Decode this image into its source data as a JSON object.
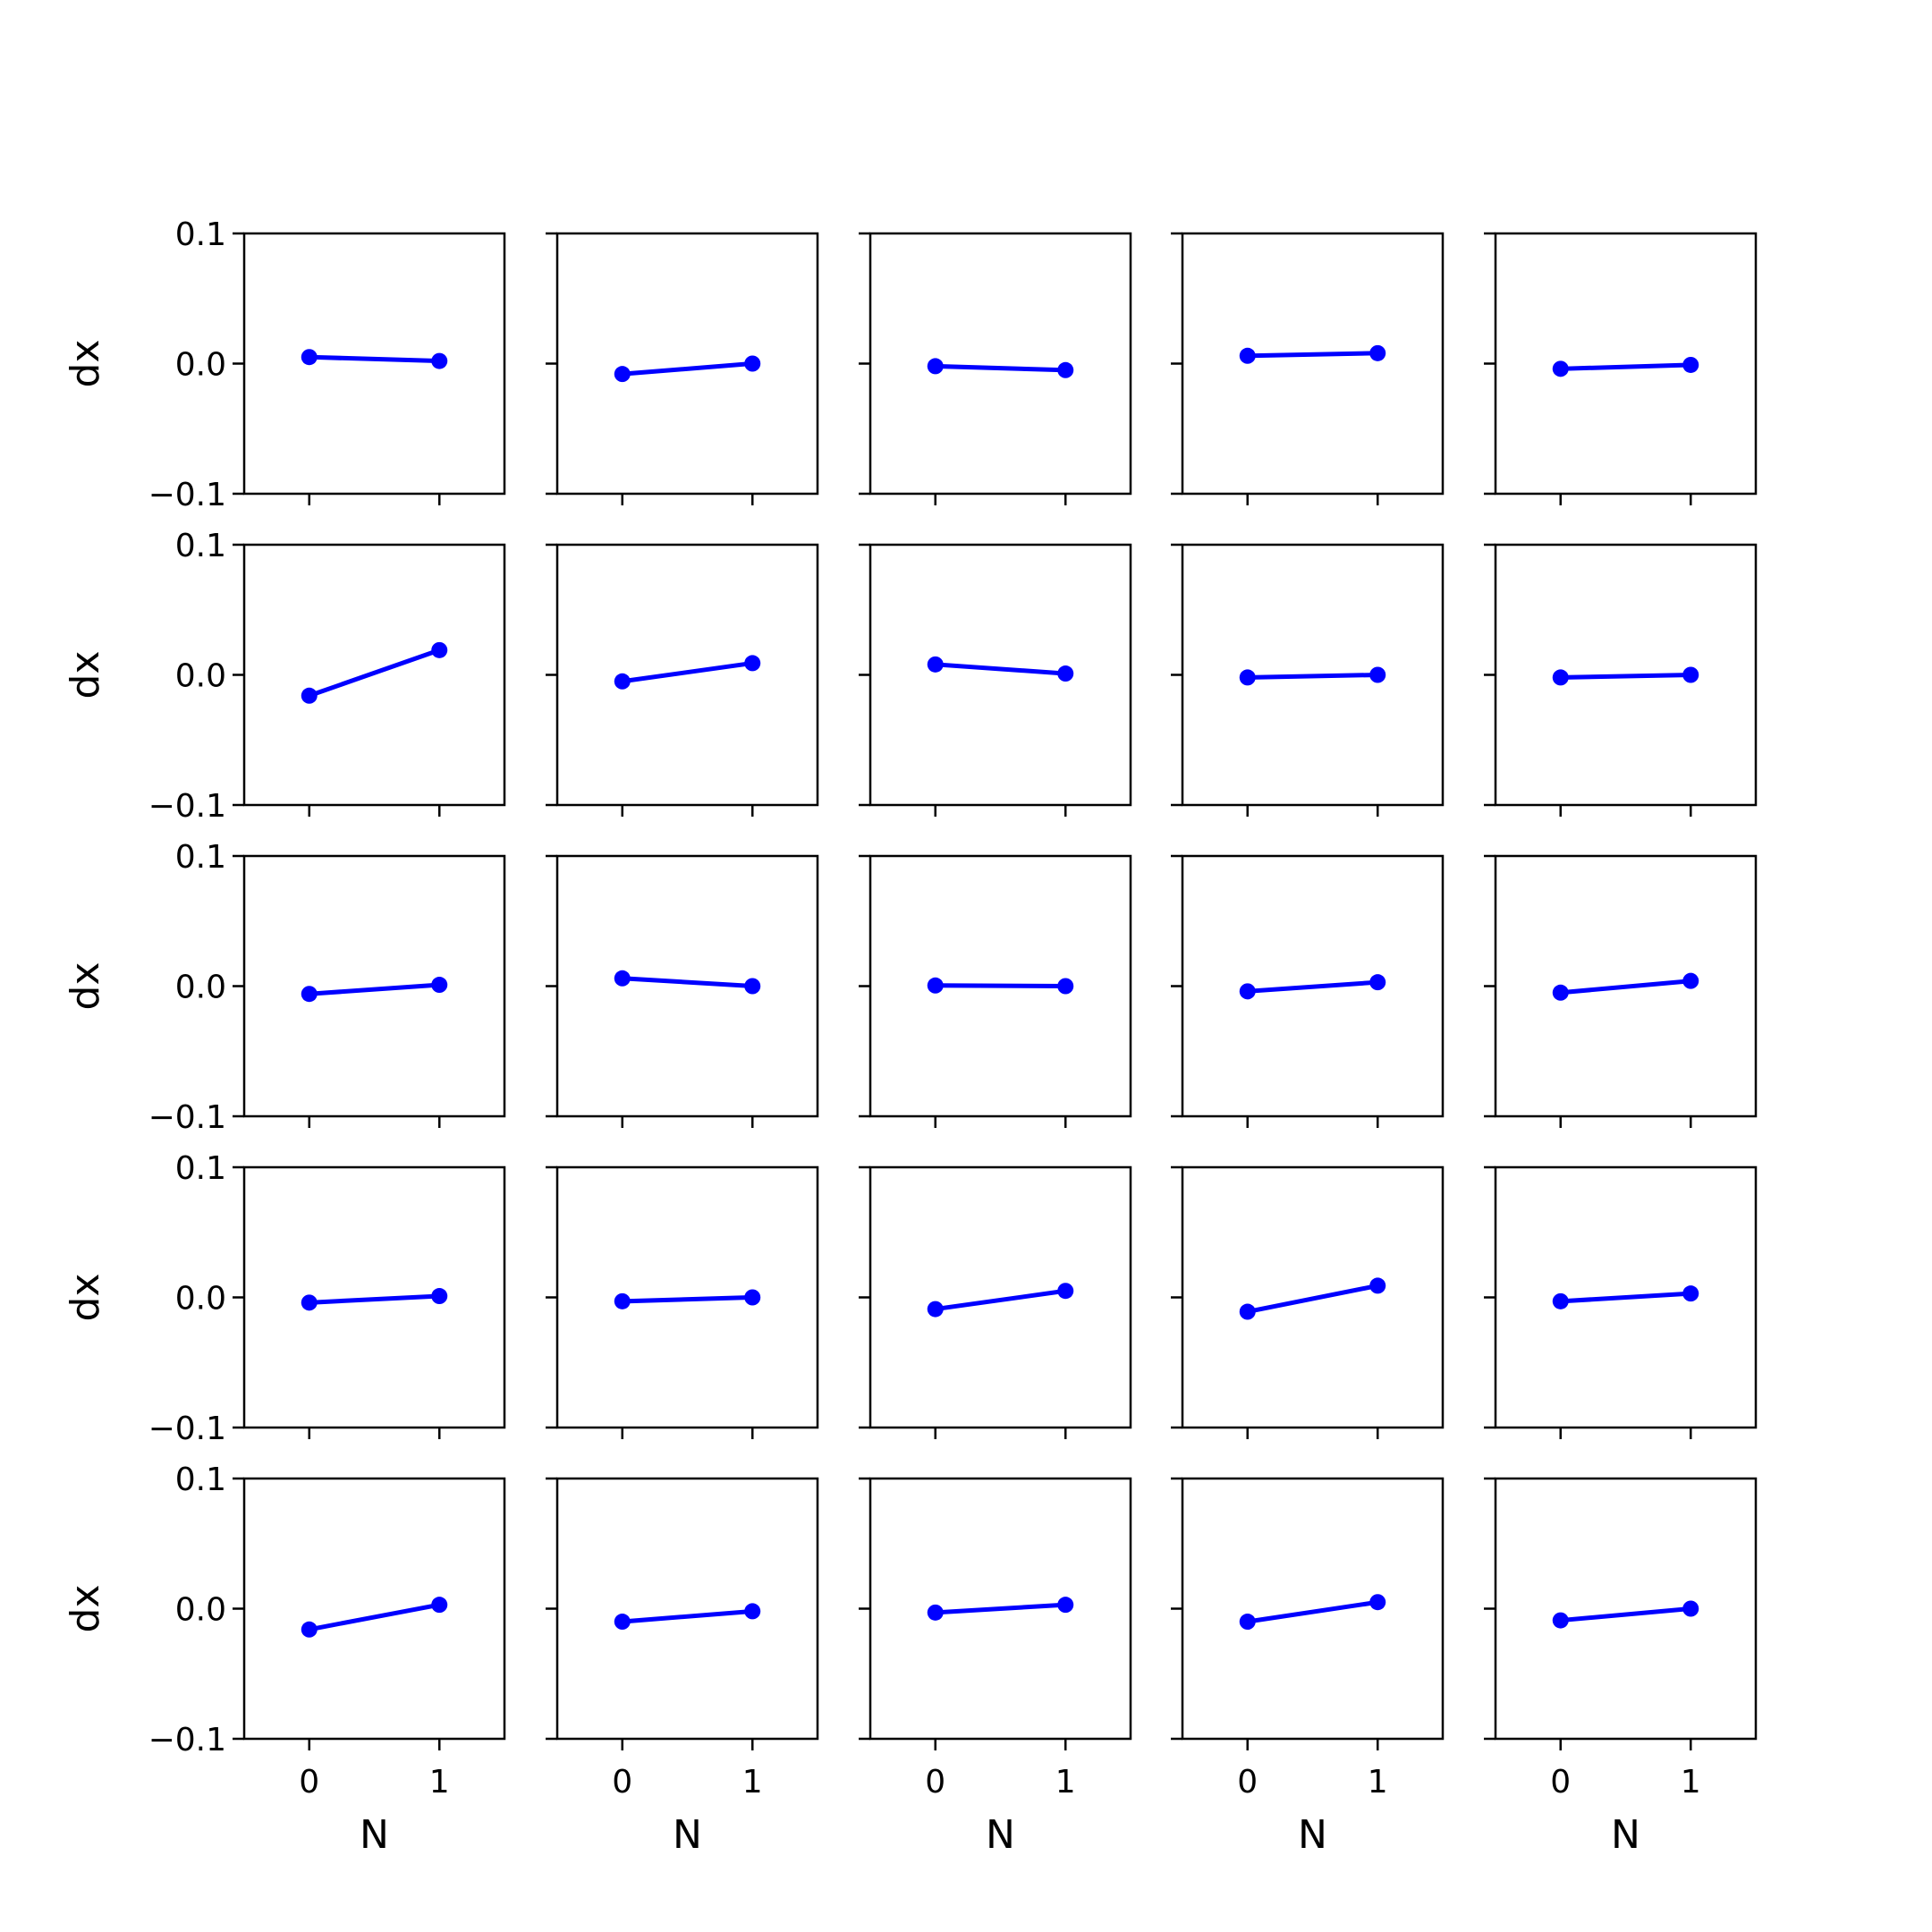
{
  "figure": {
    "layout": "5x5 grid of line charts, shared x and y axes",
    "xlabel": "N",
    "ylabel": "dx",
    "series_color": "#0000ff"
  },
  "chart_data": [
    {
      "type": "line",
      "x": [
        0,
        1
      ],
      "series": [
        {
          "values": [
            0.005,
            0.002
          ]
        }
      ],
      "xlim": [
        -0.5,
        1.5
      ],
      "ylim": [
        -0.1,
        0.1
      ],
      "xticks": [
        "0",
        "1"
      ],
      "yticks": [
        "−0.1",
        "0.0",
        "0.1"
      ],
      "xlabel": "",
      "ylabel": "dx",
      "grid": false
    },
    {
      "type": "line",
      "x": [
        0,
        1
      ],
      "series": [
        {
          "values": [
            -0.008,
            0.0
          ]
        }
      ],
      "xlim": [
        -0.5,
        1.5
      ],
      "ylim": [
        -0.1,
        0.1
      ],
      "xticks": [
        "0",
        "1"
      ],
      "yticks": [
        "−0.1",
        "0.0",
        "0.1"
      ],
      "xlabel": "",
      "ylabel": "",
      "grid": false
    },
    {
      "type": "line",
      "x": [
        0,
        1
      ],
      "series": [
        {
          "values": [
            -0.002,
            -0.005
          ]
        }
      ],
      "xlim": [
        -0.5,
        1.5
      ],
      "ylim": [
        -0.1,
        0.1
      ],
      "xticks": [
        "0",
        "1"
      ],
      "yticks": [
        "−0.1",
        "0.0",
        "0.1"
      ],
      "xlabel": "",
      "ylabel": "",
      "grid": false
    },
    {
      "type": "line",
      "x": [
        0,
        1
      ],
      "series": [
        {
          "values": [
            0.006,
            0.008
          ]
        }
      ],
      "xlim": [
        -0.5,
        1.5
      ],
      "ylim": [
        -0.1,
        0.1
      ],
      "xticks": [
        "0",
        "1"
      ],
      "yticks": [
        "−0.1",
        "0.0",
        "0.1"
      ],
      "xlabel": "",
      "ylabel": "",
      "grid": false
    },
    {
      "type": "line",
      "x": [
        0,
        1
      ],
      "series": [
        {
          "values": [
            -0.004,
            -0.001
          ]
        }
      ],
      "xlim": [
        -0.5,
        1.5
      ],
      "ylim": [
        -0.1,
        0.1
      ],
      "xticks": [
        "0",
        "1"
      ],
      "yticks": [
        "−0.1",
        "0.0",
        "0.1"
      ],
      "xlabel": "",
      "ylabel": "",
      "grid": false
    },
    {
      "type": "line",
      "x": [
        0,
        1
      ],
      "series": [
        {
          "values": [
            -0.016,
            0.019
          ]
        }
      ],
      "xlim": [
        -0.5,
        1.5
      ],
      "ylim": [
        -0.1,
        0.1
      ],
      "xticks": [
        "0",
        "1"
      ],
      "yticks": [
        "−0.1",
        "0.0",
        "0.1"
      ],
      "xlabel": "",
      "ylabel": "dx",
      "grid": false
    },
    {
      "type": "line",
      "x": [
        0,
        1
      ],
      "series": [
        {
          "values": [
            -0.005,
            0.009
          ]
        }
      ],
      "xlim": [
        -0.5,
        1.5
      ],
      "ylim": [
        -0.1,
        0.1
      ],
      "xticks": [
        "0",
        "1"
      ],
      "yticks": [
        "−0.1",
        "0.0",
        "0.1"
      ],
      "xlabel": "",
      "ylabel": "",
      "grid": false
    },
    {
      "type": "line",
      "x": [
        0,
        1
      ],
      "series": [
        {
          "values": [
            0.008,
            0.001
          ]
        }
      ],
      "xlim": [
        -0.5,
        1.5
      ],
      "ylim": [
        -0.1,
        0.1
      ],
      "xticks": [
        "0",
        "1"
      ],
      "yticks": [
        "−0.1",
        "0.0",
        "0.1"
      ],
      "xlabel": "",
      "ylabel": "",
      "grid": false
    },
    {
      "type": "line",
      "x": [
        0,
        1
      ],
      "series": [
        {
          "values": [
            -0.002,
            0.0
          ]
        }
      ],
      "xlim": [
        -0.5,
        1.5
      ],
      "ylim": [
        -0.1,
        0.1
      ],
      "xticks": [
        "0",
        "1"
      ],
      "yticks": [
        "−0.1",
        "0.0",
        "0.1"
      ],
      "xlabel": "",
      "ylabel": "",
      "grid": false
    },
    {
      "type": "line",
      "x": [
        0,
        1
      ],
      "series": [
        {
          "values": [
            -0.002,
            0.0
          ]
        }
      ],
      "xlim": [
        -0.5,
        1.5
      ],
      "ylim": [
        -0.1,
        0.1
      ],
      "xticks": [
        "0",
        "1"
      ],
      "yticks": [
        "−0.1",
        "0.0",
        "0.1"
      ],
      "xlabel": "",
      "ylabel": "",
      "grid": false
    },
    {
      "type": "line",
      "x": [
        0,
        1
      ],
      "series": [
        {
          "values": [
            -0.006,
            0.001
          ]
        }
      ],
      "xlim": [
        -0.5,
        1.5
      ],
      "ylim": [
        -0.1,
        0.1
      ],
      "xticks": [
        "0",
        "1"
      ],
      "yticks": [
        "−0.1",
        "0.0",
        "0.1"
      ],
      "xlabel": "",
      "ylabel": "dx",
      "grid": false
    },
    {
      "type": "line",
      "x": [
        0,
        1
      ],
      "series": [
        {
          "values": [
            0.006,
            0.0
          ]
        }
      ],
      "xlim": [
        -0.5,
        1.5
      ],
      "ylim": [
        -0.1,
        0.1
      ],
      "xticks": [
        "0",
        "1"
      ],
      "yticks": [
        "−0.1",
        "0.0",
        "0.1"
      ],
      "xlabel": "",
      "ylabel": "",
      "grid": false
    },
    {
      "type": "line",
      "x": [
        0,
        1
      ],
      "series": [
        {
          "values": [
            0.0005,
            0.0
          ]
        }
      ],
      "xlim": [
        -0.5,
        1.5
      ],
      "ylim": [
        -0.1,
        0.1
      ],
      "xticks": [
        "0",
        "1"
      ],
      "yticks": [
        "−0.1",
        "0.0",
        "0.1"
      ],
      "xlabel": "",
      "ylabel": "",
      "grid": false
    },
    {
      "type": "line",
      "x": [
        0,
        1
      ],
      "series": [
        {
          "values": [
            -0.004,
            0.003
          ]
        }
      ],
      "xlim": [
        -0.5,
        1.5
      ],
      "ylim": [
        -0.1,
        0.1
      ],
      "xticks": [
        "0",
        "1"
      ],
      "yticks": [
        "−0.1",
        "0.0",
        "0.1"
      ],
      "xlabel": "",
      "ylabel": "",
      "grid": false
    },
    {
      "type": "line",
      "x": [
        0,
        1
      ],
      "series": [
        {
          "values": [
            -0.005,
            0.004
          ]
        }
      ],
      "xlim": [
        -0.5,
        1.5
      ],
      "ylim": [
        -0.1,
        0.1
      ],
      "xticks": [
        "0",
        "1"
      ],
      "yticks": [
        "−0.1",
        "0.0",
        "0.1"
      ],
      "xlabel": "",
      "ylabel": "",
      "grid": false
    },
    {
      "type": "line",
      "x": [
        0,
        1
      ],
      "series": [
        {
          "values": [
            -0.004,
            0.001
          ]
        }
      ],
      "xlim": [
        -0.5,
        1.5
      ],
      "ylim": [
        -0.1,
        0.1
      ],
      "xticks": [
        "0",
        "1"
      ],
      "yticks": [
        "−0.1",
        "0.0",
        "0.1"
      ],
      "xlabel": "",
      "ylabel": "dx",
      "grid": false
    },
    {
      "type": "line",
      "x": [
        0,
        1
      ],
      "series": [
        {
          "values": [
            -0.003,
            0.0
          ]
        }
      ],
      "xlim": [
        -0.5,
        1.5
      ],
      "ylim": [
        -0.1,
        0.1
      ],
      "xticks": [
        "0",
        "1"
      ],
      "yticks": [
        "−0.1",
        "0.0",
        "0.1"
      ],
      "xlabel": "",
      "ylabel": "",
      "grid": false
    },
    {
      "type": "line",
      "x": [
        0,
        1
      ],
      "series": [
        {
          "values": [
            -0.009,
            0.005
          ]
        }
      ],
      "xlim": [
        -0.5,
        1.5
      ],
      "ylim": [
        -0.1,
        0.1
      ],
      "xticks": [
        "0",
        "1"
      ],
      "yticks": [
        "−0.1",
        "0.0",
        "0.1"
      ],
      "xlabel": "",
      "ylabel": "",
      "grid": false
    },
    {
      "type": "line",
      "x": [
        0,
        1
      ],
      "series": [
        {
          "values": [
            -0.011,
            0.009
          ]
        }
      ],
      "xlim": [
        -0.5,
        1.5
      ],
      "ylim": [
        -0.1,
        0.1
      ],
      "xticks": [
        "0",
        "1"
      ],
      "yticks": [
        "−0.1",
        "0.0",
        "0.1"
      ],
      "xlabel": "",
      "ylabel": "",
      "grid": false
    },
    {
      "type": "line",
      "x": [
        0,
        1
      ],
      "series": [
        {
          "values": [
            -0.003,
            0.003
          ]
        }
      ],
      "xlim": [
        -0.5,
        1.5
      ],
      "ylim": [
        -0.1,
        0.1
      ],
      "xticks": [
        "0",
        "1"
      ],
      "yticks": [
        "−0.1",
        "0.0",
        "0.1"
      ],
      "xlabel": "",
      "ylabel": "",
      "grid": false
    },
    {
      "type": "line",
      "x": [
        0,
        1
      ],
      "series": [
        {
          "values": [
            -0.016,
            0.003
          ]
        }
      ],
      "xlim": [
        -0.5,
        1.5
      ],
      "ylim": [
        -0.1,
        0.1
      ],
      "xticks": [
        "0",
        "1"
      ],
      "yticks": [
        "−0.1",
        "0.0",
        "0.1"
      ],
      "xlabel": "N",
      "ylabel": "dx",
      "grid": false
    },
    {
      "type": "line",
      "x": [
        0,
        1
      ],
      "series": [
        {
          "values": [
            -0.01,
            -0.002
          ]
        }
      ],
      "xlim": [
        -0.5,
        1.5
      ],
      "ylim": [
        -0.1,
        0.1
      ],
      "xticks": [
        "0",
        "1"
      ],
      "yticks": [
        "−0.1",
        "0.0",
        "0.1"
      ],
      "xlabel": "N",
      "ylabel": "",
      "grid": false
    },
    {
      "type": "line",
      "x": [
        0,
        1
      ],
      "series": [
        {
          "values": [
            -0.003,
            0.003
          ]
        }
      ],
      "xlim": [
        -0.5,
        1.5
      ],
      "ylim": [
        -0.1,
        0.1
      ],
      "xticks": [
        "0",
        "1"
      ],
      "yticks": [
        "−0.1",
        "0.0",
        "0.1"
      ],
      "xlabel": "N",
      "ylabel": "",
      "grid": false
    },
    {
      "type": "line",
      "x": [
        0,
        1
      ],
      "series": [
        {
          "values": [
            -0.01,
            0.005
          ]
        }
      ],
      "xlim": [
        -0.5,
        1.5
      ],
      "ylim": [
        -0.1,
        0.1
      ],
      "xticks": [
        "0",
        "1"
      ],
      "yticks": [
        "−0.1",
        "0.0",
        "0.1"
      ],
      "xlabel": "N",
      "ylabel": "",
      "grid": false
    },
    {
      "type": "line",
      "x": [
        0,
        1
      ],
      "series": [
        {
          "values": [
            -0.009,
            0.0
          ]
        }
      ],
      "xlim": [
        -0.5,
        1.5
      ],
      "ylim": [
        -0.1,
        0.1
      ],
      "xticks": [
        "0",
        "1"
      ],
      "yticks": [
        "−0.1",
        "0.0",
        "0.1"
      ],
      "xlabel": "N",
      "ylabel": "",
      "grid": false
    }
  ]
}
